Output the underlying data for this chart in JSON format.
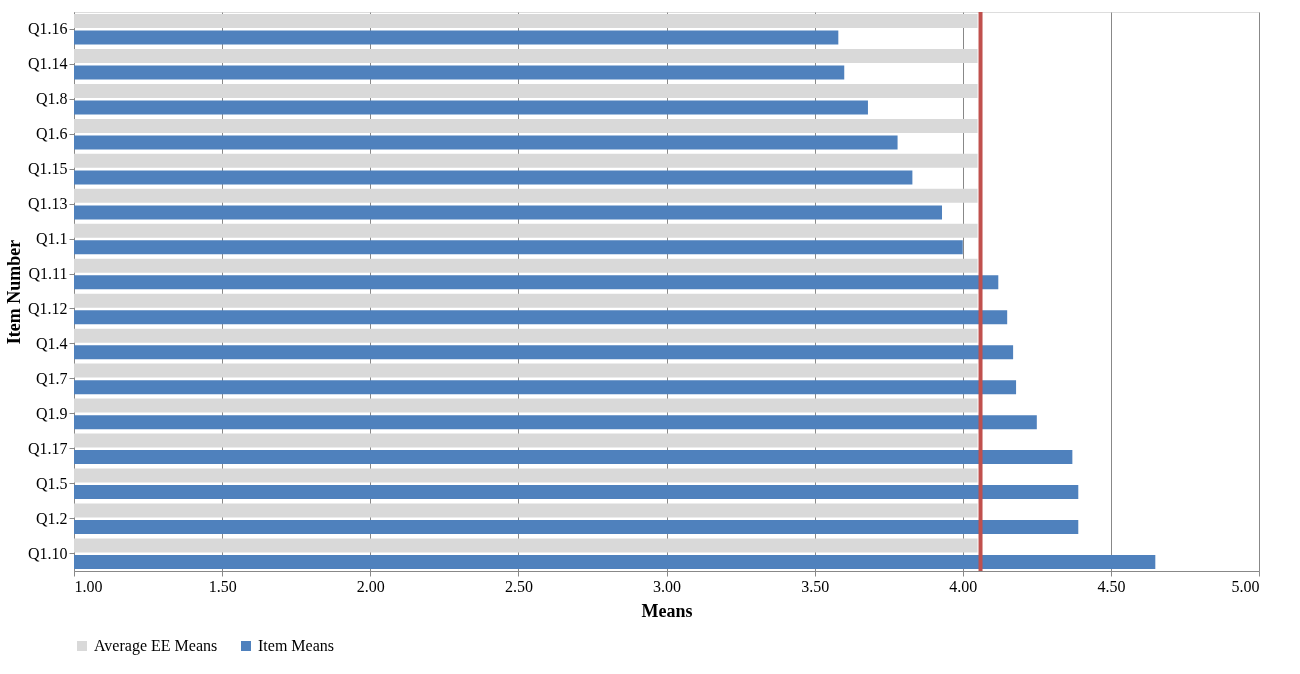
{
  "chart_data": {
    "type": "bar",
    "orientation": "horizontal",
    "xlabel": "Means",
    "ylabel": "Item Number",
    "categories": [
      "Q1.16",
      "Q1.14",
      "Q1.8",
      "Q1.6",
      "Q1.15",
      "Q1.13",
      "Q1.1",
      "Q1.11",
      "Q1.12",
      "Q1.4",
      "Q1.7",
      "Q1.9",
      "Q1.17",
      "Q1.5",
      "Q1.2",
      "Q1.10"
    ],
    "series": [
      {
        "name": "Average EE Means",
        "color": "#d9d9d9",
        "values": [
          4.05,
          4.05,
          4.05,
          4.05,
          4.05,
          4.05,
          4.05,
          4.05,
          4.05,
          4.05,
          4.05,
          4.05,
          4.05,
          4.05,
          4.05,
          4.05
        ]
      },
      {
        "name": "Item Means",
        "color": "#4f81bd",
        "values": [
          3.58,
          3.6,
          3.68,
          3.78,
          3.83,
          3.93,
          4.0,
          4.12,
          4.15,
          4.17,
          4.18,
          4.25,
          4.37,
          4.39,
          4.39,
          4.65
        ]
      }
    ],
    "xlim": [
      1.0,
      5.0
    ],
    "xticks": [
      {
        "value": 1.0,
        "label": "1.00"
      },
      {
        "value": 1.5,
        "label": "1.50"
      },
      {
        "value": 2.0,
        "label": "2.00"
      },
      {
        "value": 2.5,
        "label": "2.50"
      },
      {
        "value": 3.0,
        "label": "3.00"
      },
      {
        "value": 3.5,
        "label": "3.50"
      },
      {
        "value": 4.0,
        "label": "4.00"
      },
      {
        "value": 4.5,
        "label": "4.50"
      },
      {
        "value": 5.0,
        "label": "5.00"
      }
    ],
    "ref_lines": [
      {
        "axis": "x",
        "value": 4.06,
        "color": "#c0504d"
      }
    ],
    "grid": "x",
    "legend": "bottom"
  }
}
